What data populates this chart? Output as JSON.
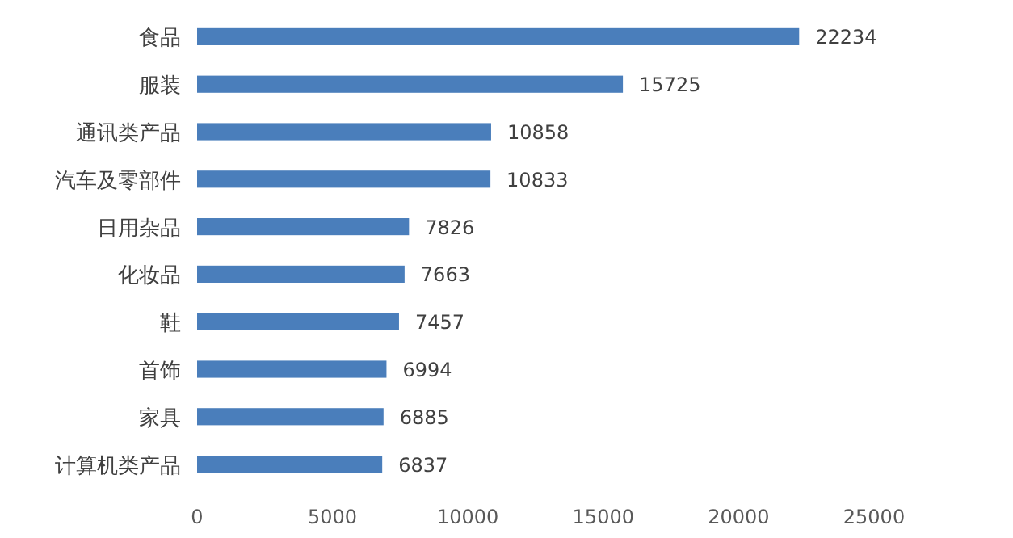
{
  "chart_data": {
    "type": "bar",
    "orientation": "horizontal",
    "categories": [
      "食品",
      "服装",
      "通讯类产品",
      "汽车及零部件",
      "日用杂品",
      "化妆品",
      "鞋",
      "首饰",
      "家具",
      "计算机类产品"
    ],
    "values": [
      22234,
      15725,
      10858,
      10833,
      7826,
      7663,
      7457,
      6994,
      6885,
      6837
    ],
    "color": "#4a7ebb",
    "xlim": [
      0,
      25000
    ],
    "xticks": [
      0,
      5000,
      10000,
      15000,
      20000,
      25000
    ],
    "data_labels": true
  }
}
